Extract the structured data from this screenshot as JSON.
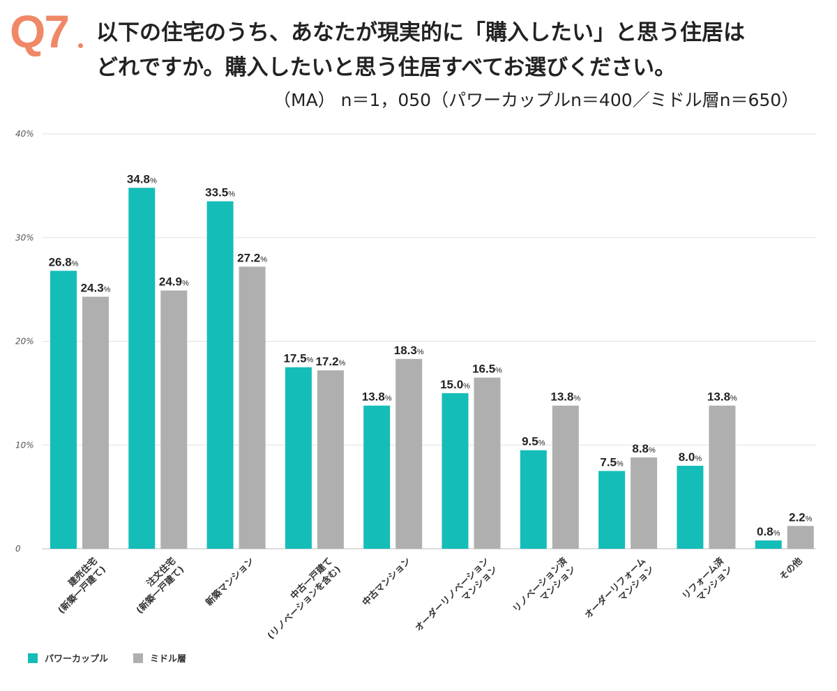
{
  "header": {
    "q_label": "Q7",
    "q_color": "#F08868",
    "title_line1": "以下の住宅のうち、あなたが現実的に「購入したい」と思う住居は",
    "title_line2": "どれですか。購入したいと思う住居すべてお選びください。",
    "sample_note": "（MA） n＝1，050（パワーカップルn＝400／ミドル層n＝650）"
  },
  "chart_data": {
    "type": "bar",
    "ylim": [
      0,
      40
    ],
    "yticks": [
      {
        "value": 0,
        "label": "0"
      },
      {
        "value": 10,
        "label": "10%"
      },
      {
        "value": 20,
        "label": "20%"
      },
      {
        "value": 30,
        "label": "30%"
      },
      {
        "value": 40,
        "label": "40%"
      }
    ],
    "grid": true,
    "legend_position": "bottom-left",
    "categories": [
      [
        "建売住宅",
        "(新築一戸建て)"
      ],
      [
        "注文住宅",
        "(新築一戸建て)"
      ],
      [
        "新築マンション"
      ],
      [
        "中古一戸建て",
        "(リノベーションを含む)"
      ],
      [
        "中古マンション"
      ],
      [
        "オーダーリノベーション",
        "マンション"
      ],
      [
        "リノベーション済",
        "マンション"
      ],
      [
        "オーダーリフォーム",
        "マンション"
      ],
      [
        "リフォーム済",
        "マンション"
      ],
      [
        "その他"
      ]
    ],
    "series": [
      {
        "name": "パワーカップル",
        "color": "#14BDB8",
        "values": [
          26.8,
          34.8,
          33.5,
          17.5,
          13.8,
          15.0,
          9.5,
          7.5,
          8.0,
          0.8
        ],
        "labels": [
          "26.8",
          "34.8",
          "33.5",
          "17.5",
          "13.8",
          "15.0",
          "9.5",
          "7.5",
          "8.0",
          "0.8"
        ]
      },
      {
        "name": "ミドル層",
        "color": "#AFAFAF",
        "values": [
          24.3,
          24.9,
          27.2,
          17.2,
          18.3,
          16.5,
          13.8,
          8.8,
          13.8,
          2.2
        ],
        "labels": [
          "24.3",
          "24.9",
          "27.2",
          "17.2",
          "18.3",
          "16.5",
          "13.8",
          "8.8",
          "13.8",
          "2.2"
        ]
      }
    ],
    "value_suffix": "%"
  }
}
